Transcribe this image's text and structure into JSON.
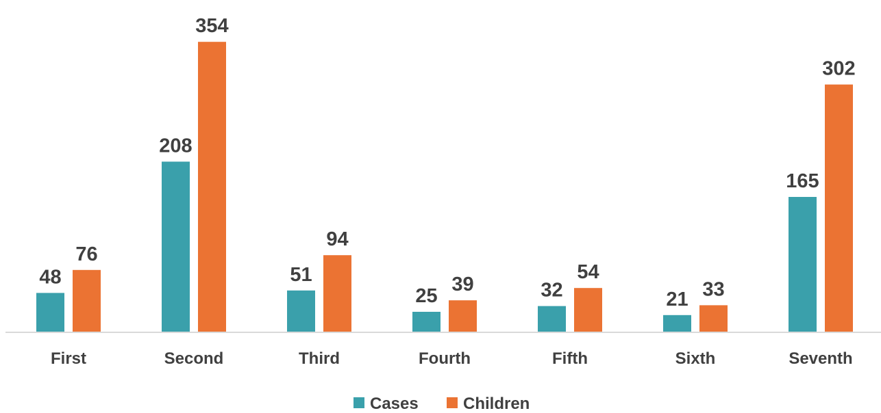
{
  "chart_data": {
    "type": "bar",
    "categories": [
      "First",
      "Second",
      "Third",
      "Fourth",
      "Fifth",
      "Sixth",
      "Seventh"
    ],
    "series": [
      {
        "name": "Cases",
        "values": [
          48,
          208,
          51,
          25,
          32,
          21,
          165
        ],
        "color": "#3AA0AB"
      },
      {
        "name": "Children",
        "values": [
          76,
          354,
          94,
          39,
          54,
          33,
          302
        ],
        "color": "#EB7333"
      }
    ],
    "ylim": [
      0,
      354
    ],
    "grid": false,
    "data_labels": true,
    "legend_position": "bottom"
  }
}
